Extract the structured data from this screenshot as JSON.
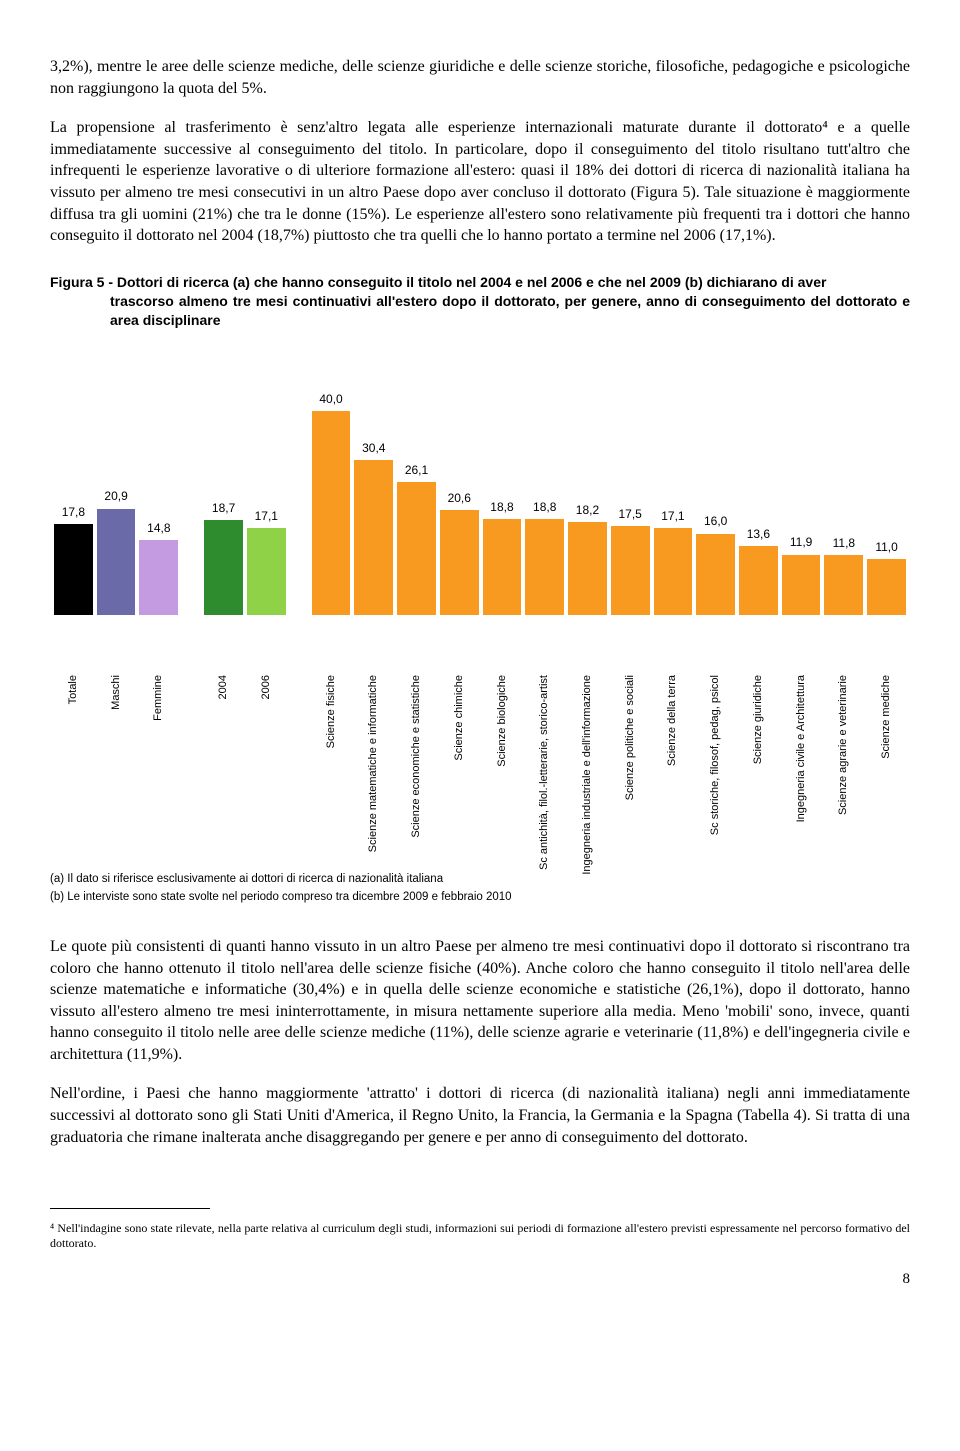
{
  "para1": "3,2%), mentre le aree delle scienze mediche, delle scienze giuridiche e delle scienze storiche, filosofiche, pedagogiche e psicologiche non raggiungono la quota del 5%.",
  "para2": "La propensione al trasferimento è senz'altro legata alle esperienze internazionali maturate durante il dottorato⁴ e a quelle immediatamente successive al conseguimento del titolo. In particolare, dopo il conseguimento del titolo risultano tutt'altro che infrequenti le esperienze lavorative o di ulteriore formazione all'estero: quasi il 18% dei dottori di ricerca di nazionalità italiana ha vissuto per almeno tre mesi consecutivi in un altro Paese dopo aver concluso il dottorato (Figura 5). Tale situazione è maggiormente diffusa tra gli uomini (21%) che tra le donne (15%). Le esperienze all'estero sono relativamente più frequenti tra i dottori che hanno conseguito il dottorato nel 2004 (18,7%) piuttosto che tra quelli che lo hanno portato a termine nel 2006 (17,1%).",
  "caption_a": "Figura 5 - Dottori di ricerca (a) che hanno conseguito il titolo nel 2004 e nel 2006 e che nel 2009 (b) dichiarano di aver",
  "caption_b": "trascorso almeno tre mesi continuativi all'estero dopo il dottorato, per genere, anno di conseguimento del dottorato e area disciplinare",
  "chart": {
    "max": 45,
    "bars": [
      {
        "label": "Totale",
        "value": 17.8,
        "display": "17,8",
        "color": "#000000"
      },
      {
        "label": "Maschi",
        "value": 20.9,
        "display": "20,9",
        "color": "#6a6aa8"
      },
      {
        "label": "Femmine",
        "value": 14.8,
        "display": "14,8",
        "color": "#c49ae0"
      },
      {
        "spacer": true
      },
      {
        "label": "2004",
        "value": 18.7,
        "display": "18,7",
        "color": "#2e8b2e"
      },
      {
        "label": "2006",
        "value": 17.1,
        "display": "17,1",
        "color": "#8fd147"
      },
      {
        "spacer": true
      },
      {
        "label": "Scienze fisiche",
        "value": 40.0,
        "display": "40,0",
        "color": "#f79a1f"
      },
      {
        "label": "Scienze matematiche e informatiche",
        "value": 30.4,
        "display": "30,4",
        "color": "#f79a1f"
      },
      {
        "label": "Scienze economiche e statistiche",
        "value": 26.1,
        "display": "26,1",
        "color": "#f79a1f"
      },
      {
        "label": "Scienze chimiche",
        "value": 20.6,
        "display": "20,6",
        "color": "#f79a1f"
      },
      {
        "label": "Scienze biologiche",
        "value": 18.8,
        "display": "18,8",
        "color": "#f79a1f"
      },
      {
        "label": "Sc antichità, filol.-letterarie, storico-artist",
        "value": 18.8,
        "display": "18,8",
        "color": "#f79a1f"
      },
      {
        "label": "Ingegneria industriale e dell'informazione",
        "value": 18.2,
        "display": "18,2",
        "color": "#f79a1f"
      },
      {
        "label": "Scienze politiche e sociali",
        "value": 17.5,
        "display": "17,5",
        "color": "#f79a1f"
      },
      {
        "label": "Scienze della terra",
        "value": 17.1,
        "display": "17,1",
        "color": "#f79a1f"
      },
      {
        "label": "Sc storiche, filosof, pedag, psicol",
        "value": 16.0,
        "display": "16,0",
        "color": "#f79a1f"
      },
      {
        "label": "Scienze giuridiche",
        "value": 13.6,
        "display": "13,6",
        "color": "#f79a1f"
      },
      {
        "label": "Ingegneria civile e Architettura",
        "value": 11.9,
        "display": "11,9",
        "color": "#f79a1f"
      },
      {
        "label": "Scienze agrarie e veterinarie",
        "value": 11.8,
        "display": "11,8",
        "color": "#f79a1f"
      },
      {
        "label": "Scienze mediche",
        "value": 11.0,
        "display": "11,0",
        "color": "#f79a1f"
      }
    ]
  },
  "note_a": "(a) Il dato si riferisce esclusivamente ai dottori di ricerca di nazionalità italiana",
  "note_b": "(b)  Le interviste sono state svolte nel periodo compreso tra dicembre 2009 e febbraio 2010",
  "para3": "Le quote più consistenti di quanti hanno vissuto in un altro Paese per almeno tre mesi continuativi dopo il dottorato si riscontrano tra coloro che hanno ottenuto il titolo nell'area delle scienze fisiche (40%). Anche coloro che hanno conseguito il titolo nell'area delle scienze matematiche e informatiche (30,4%) e in quella delle scienze economiche e statistiche (26,1%), dopo il dottorato, hanno vissuto all'estero almeno tre mesi ininterrottamente, in misura nettamente superiore alla media. Meno 'mobili' sono, invece, quanti hanno conseguito il titolo nelle aree delle scienze mediche (11%), delle scienze agrarie e veterinarie (11,8%) e dell'ingegneria civile e architettura (11,9%).",
  "para4": "Nell'ordine, i Paesi che hanno maggiormente 'attratto' i dottori di ricerca (di nazionalità italiana) negli anni immediatamente successivi al dottorato sono gli Stati Uniti d'America, il Regno Unito, la Francia, la Germania e la Spagna (Tabella 4). Si tratta di una graduatoria che rimane inalterata anche disaggregando per genere e per anno di conseguimento del dottorato.",
  "footnote": "⁴ Nell'indagine sono state rilevate, nella parte relativa al curriculum degli studi, informazioni sui periodi di formazione all'estero previsti espressamente nel percorso formativo del dottorato.",
  "pagenum": "8"
}
